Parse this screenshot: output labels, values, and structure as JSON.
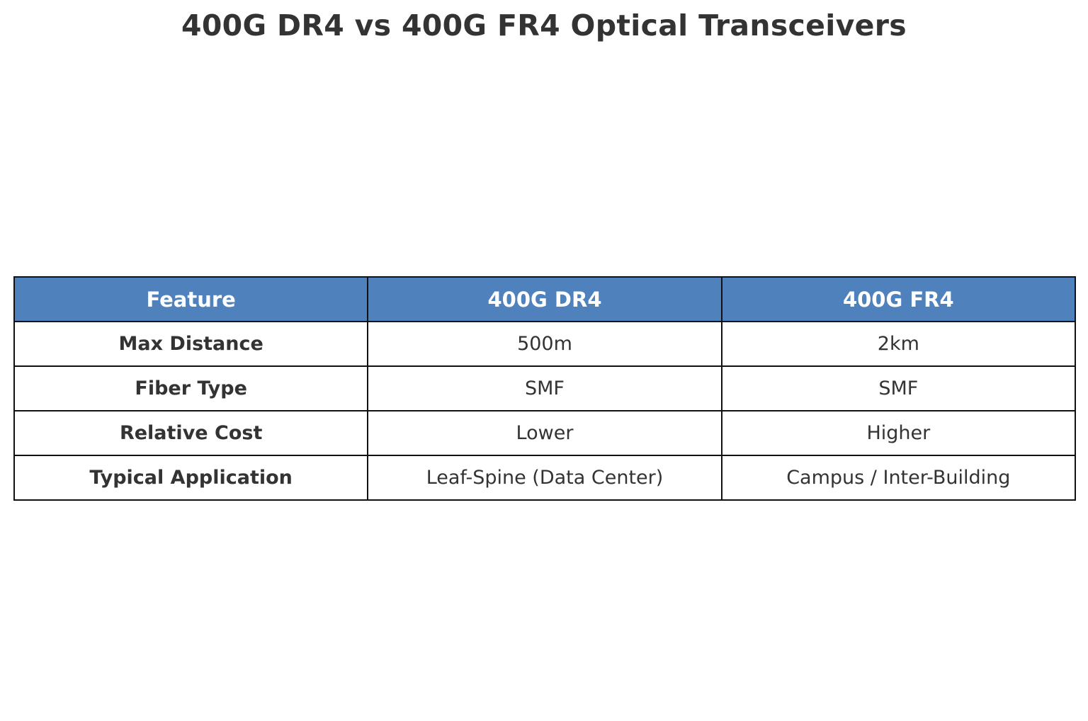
{
  "title": "400G DR4 vs 400G FR4 Optical Transceivers",
  "table": {
    "headers": [
      "Feature",
      "400G DR4",
      "400G FR4"
    ],
    "rows": [
      [
        "Max Distance",
        "500m",
        "2km"
      ],
      [
        "Fiber Type",
        "SMF",
        "SMF"
      ],
      [
        "Relative Cost",
        "Lower",
        "Higher"
      ],
      [
        "Typical Application",
        "Leaf-Spine (Data Center)",
        "Campus / Inter-Building"
      ]
    ]
  },
  "colors": {
    "header_bg": "#4f81bd",
    "header_text": "#ffffff",
    "body_text": "#333333",
    "border": "#111111"
  },
  "chart_data": {
    "type": "table",
    "title": "400G DR4 vs 400G FR4 Optical Transceivers",
    "columns": [
      "Feature",
      "400G DR4",
      "400G FR4"
    ],
    "rows": [
      {
        "Feature": "Max Distance",
        "400G DR4": "500m",
        "400G FR4": "2km"
      },
      {
        "Feature": "Fiber Type",
        "400G DR4": "SMF",
        "400G FR4": "SMF"
      },
      {
        "Feature": "Relative Cost",
        "400G DR4": "Lower",
        "400G FR4": "Higher"
      },
      {
        "Feature": "Typical Application",
        "400G DR4": "Leaf-Spine (Data Center)",
        "400G FR4": "Campus / Inter-Building"
      }
    ]
  }
}
